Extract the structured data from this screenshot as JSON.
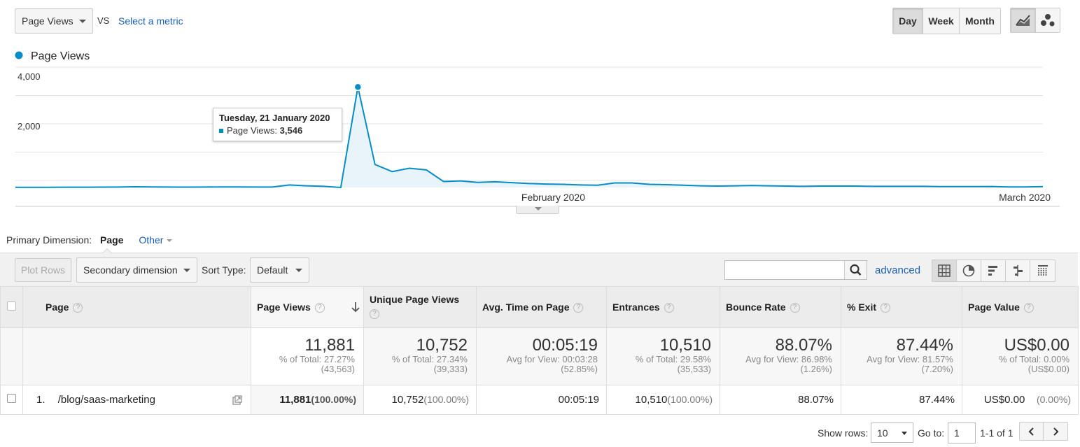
{
  "top": {
    "metric_select": "Page Views",
    "vs_label": "VS",
    "select_metric_link": "Select a metric",
    "period_buttons": [
      "Day",
      "Week",
      "Month"
    ],
    "active_period": "Day",
    "chart_type_icons": [
      "line-chart-icon",
      "motion-chart-icon"
    ]
  },
  "chart_data": {
    "type": "area",
    "legend": "Page Views",
    "color": "#058dc7",
    "y_ticks": [
      "4,000",
      "2,000"
    ],
    "ylim": [
      0,
      4000
    ],
    "x_labels": [
      "February 2020",
      "March 2020"
    ],
    "x": [
      "2020-01-01",
      "2020-01-02",
      "2020-01-03",
      "2020-01-04",
      "2020-01-05",
      "2020-01-06",
      "2020-01-07",
      "2020-01-08",
      "2020-01-09",
      "2020-01-10",
      "2020-01-11",
      "2020-01-12",
      "2020-01-13",
      "2020-01-14",
      "2020-01-15",
      "2020-01-16",
      "2020-01-17",
      "2020-01-18",
      "2020-01-19",
      "2020-01-20",
      "2020-01-21",
      "2020-01-22",
      "2020-01-23",
      "2020-01-24",
      "2020-01-25",
      "2020-01-26",
      "2020-01-27",
      "2020-01-28",
      "2020-01-29",
      "2020-01-30",
      "2020-01-31",
      "2020-02-01",
      "2020-02-02",
      "2020-02-03",
      "2020-02-04",
      "2020-02-05",
      "2020-02-06",
      "2020-02-07",
      "2020-02-08",
      "2020-02-09",
      "2020-02-10",
      "2020-02-11",
      "2020-02-12",
      "2020-02-13",
      "2020-02-14",
      "2020-02-15",
      "2020-02-16",
      "2020-02-17",
      "2020-02-18",
      "2020-02-19",
      "2020-02-20",
      "2020-02-21",
      "2020-02-22",
      "2020-02-23",
      "2020-02-24",
      "2020-02-25",
      "2020-02-26",
      "2020-02-27",
      "2020-02-28",
      "2020-02-29",
      "2020-03-01"
    ],
    "values": [
      5,
      5,
      6,
      8,
      10,
      12,
      15,
      25,
      18,
      15,
      12,
      15,
      20,
      18,
      15,
      15,
      90,
      60,
      40,
      0,
      3546,
      810,
      560,
      680,
      620,
      210,
      230,
      180,
      200,
      170,
      140,
      120,
      110,
      90,
      80,
      160,
      160,
      110,
      100,
      80,
      60,
      50,
      60,
      70,
      60,
      50,
      40,
      50,
      50,
      50,
      40,
      40,
      40,
      40,
      30,
      30,
      30,
      35,
      20,
      20,
      30
    ],
    "highlight": {
      "index": 20,
      "date_label": "Tuesday, 21 January 2020",
      "series_label": "Page Views:",
      "value_label": "3,546"
    }
  },
  "dimension": {
    "label": "Primary Dimension:",
    "active": "Page",
    "other": "Other"
  },
  "toolbar": {
    "plot_rows": "Plot Rows",
    "secondary_dimension": "Secondary dimension",
    "sort_type_label": "Sort Type:",
    "sort_type_value": "Default",
    "search_value": "",
    "advanced_link": "advanced",
    "view_icons": [
      "data-table-icon",
      "pie-chart-icon",
      "performance-icon",
      "comparison-icon",
      "pivot-icon"
    ]
  },
  "table": {
    "headers": {
      "page": "Page",
      "page_views": "Page Views",
      "unique_page_views": "Unique Page Views",
      "avg_time": "Avg. Time on Page",
      "entrances": "Entrances",
      "bounce_rate": "Bounce Rate",
      "exit": "% Exit",
      "page_value": "Page Value"
    },
    "totals": {
      "page_views": {
        "value": "11,881",
        "line1": "% of Total: 27.27%",
        "line2": "(43,563)"
      },
      "unique_page_views": {
        "value": "10,752",
        "line1": "% of Total: 27.34%",
        "line2": "(39,333)"
      },
      "avg_time": {
        "value": "00:05:19",
        "line1": "Avg for View: 00:03:28",
        "line2": "(52.85%)"
      },
      "entrances": {
        "value": "10,510",
        "line1": "% of Total: 29.58%",
        "line2": "(35,533)"
      },
      "bounce_rate": {
        "value": "88.07%",
        "line1": "Avg for View: 86.98%",
        "line2": "(1.26%)"
      },
      "exit": {
        "value": "87.44%",
        "line1": "Avg for View: 81.57%",
        "line2": "(7.20%)"
      },
      "page_value": {
        "value": "US$0.00",
        "line1": "% of Total: 0.00%",
        "line2": "(US$0.00)"
      }
    },
    "rows": [
      {
        "index": "1.",
        "page": "/blog/saas-marketing",
        "page_views": "11,881",
        "page_views_pct": "(100.00%)",
        "unique_page_views": "10,752",
        "unique_page_views_pct": "(100.00%)",
        "avg_time": "00:05:19",
        "entrances": "10,510",
        "entrances_pct": "(100.00%)",
        "bounce_rate": "88.07%",
        "exit": "87.44%",
        "page_value": "US$0.00",
        "page_value_pct": "(0.00%)"
      }
    ]
  },
  "pagination": {
    "show_rows_label": "Show rows:",
    "show_rows_value": "10",
    "goto_label": "Go to:",
    "goto_value": "1",
    "range": "1-1 of 1"
  }
}
